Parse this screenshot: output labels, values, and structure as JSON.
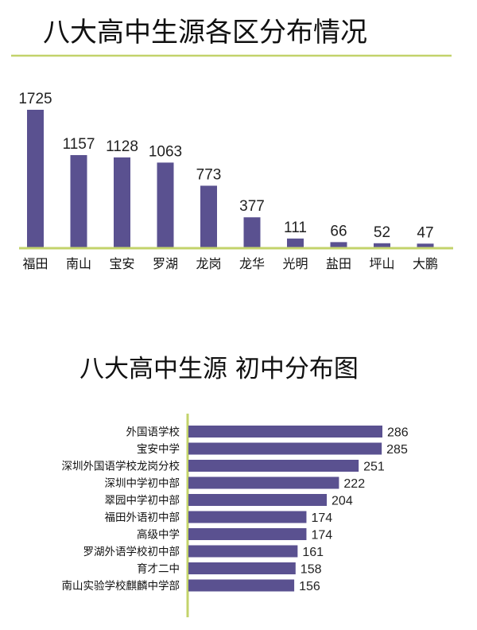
{
  "chart_data": [
    {
      "type": "bar",
      "orientation": "vertical",
      "title": "八大高中生源各区分布情况",
      "categories": [
        "福田",
        "南山",
        "宝安",
        "罗湖",
        "龙岗",
        "龙华",
        "光明",
        "盐田",
        "坪山",
        "大鹏"
      ],
      "values": [
        1725,
        1157,
        1128,
        1063,
        773,
        377,
        111,
        66,
        52,
        47
      ],
      "ylim": [
        0,
        1725
      ],
      "grid": false,
      "legend": "none",
      "bar_color": "#5a5190",
      "axis_color": "#c3d36b"
    },
    {
      "type": "bar",
      "orientation": "horizontal",
      "title": "八大高中生源  初中分布图",
      "categories": [
        "外国语学校",
        "宝安中学",
        "深圳外国语学校龙岗分校",
        "深圳中学初中部",
        "翠园中学初中部",
        "福田外语初中部",
        "高级中学",
        "罗湖外语学校初中部",
        "育才二中",
        "南山实验学校麒麟中学部"
      ],
      "values": [
        286,
        285,
        251,
        222,
        204,
        174,
        174,
        161,
        158,
        156
      ],
      "xlim": [
        0,
        286
      ],
      "grid": false,
      "legend": "none",
      "bar_color": "#5a5190",
      "axis_color": "#c3d36b"
    }
  ]
}
